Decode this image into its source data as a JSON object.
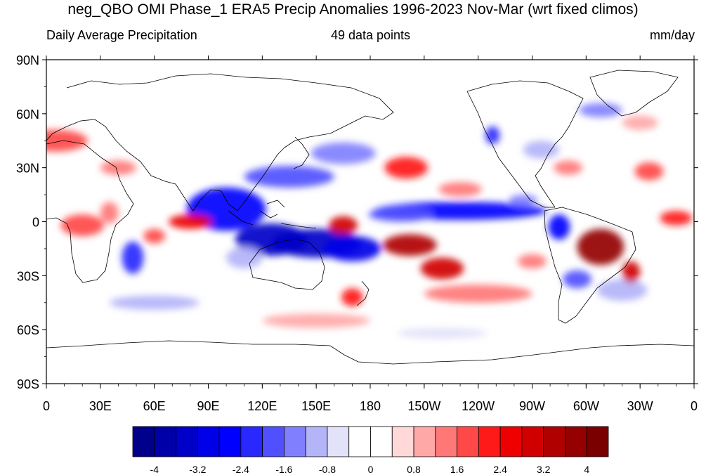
{
  "title": "neg_QBO OMI Phase_1 ERA5 Precip Anomalies 1996-2023 Nov-Mar (wrt fixed climos)",
  "left_subtitle": "Daily Average Precipitation",
  "center_subtitle": "49 data points",
  "right_subtitle": "mm/day",
  "map": {
    "projection": "cylindrical-equidistant",
    "lon_range": [
      0,
      360
    ],
    "lat_range": [
      -90,
      90
    ],
    "lat_ticks": [
      "90N",
      "60N",
      "30N",
      "0",
      "30S",
      "60S",
      "90S"
    ],
    "lon_ticks": [
      "0",
      "30E",
      "60E",
      "90E",
      "120E",
      "150E",
      "180",
      "150W",
      "120W",
      "90W",
      "60W",
      "30W",
      "0"
    ]
  },
  "colorbar": {
    "colors": [
      "#00008b",
      "#0000a8",
      "#0000c8",
      "#0000e8",
      "#0000ff",
      "#2828ff",
      "#5050ff",
      "#8080ff",
      "#b4b4f8",
      "#e2e2f8",
      "#ffffff",
      "#ffffff",
      "#ffd8d8",
      "#ffa8a8",
      "#ff7878",
      "#ff4848",
      "#ff1a1a",
      "#ee0000",
      "#d00000",
      "#b00000",
      "#950000",
      "#7a0000"
    ],
    "labels": [
      "-4",
      "-3.2",
      "-2.4",
      "-1.6",
      "-0.8",
      "0",
      "0.8",
      "1.6",
      "2.4",
      "3.2",
      "4"
    ]
  },
  "anomaly_features": [
    {
      "lon": 100,
      "lat": 7,
      "rx": 22,
      "ry": 12,
      "value": -2.8
    },
    {
      "lon": 125,
      "lat": -10,
      "rx": 20,
      "ry": 9,
      "value": -3.6
    },
    {
      "lon": 150,
      "lat": -12,
      "rx": 25,
      "ry": 8,
      "value": -3.4
    },
    {
      "lon": 170,
      "lat": -15,
      "rx": 16,
      "ry": 7,
      "value": -3.0
    },
    {
      "lon": 230,
      "lat": 6,
      "rx": 48,
      "ry": 5,
      "value": -2.8
    },
    {
      "lon": 197,
      "lat": 4,
      "rx": 18,
      "ry": 4,
      "value": -2.0
    },
    {
      "lon": 135,
      "lat": 25,
      "rx": 25,
      "ry": 6,
      "value": -1.8
    },
    {
      "lon": 165,
      "lat": 38,
      "rx": 18,
      "ry": 6,
      "value": -1.4
    },
    {
      "lon": 48,
      "lat": -20,
      "rx": 6,
      "ry": 9,
      "value": -2.4
    },
    {
      "lon": 285,
      "lat": -3,
      "rx": 6,
      "ry": 7,
      "value": -2.6
    },
    {
      "lon": 295,
      "lat": -32,
      "rx": 8,
      "ry": 5,
      "value": -2.0
    },
    {
      "lon": 320,
      "lat": -38,
      "rx": 14,
      "ry": 6,
      "value": -1.2
    },
    {
      "lon": 308,
      "lat": 62,
      "rx": 12,
      "ry": 4,
      "value": -1.6
    },
    {
      "lon": 248,
      "lat": 48,
      "rx": 4,
      "ry": 5,
      "value": -2.4
    },
    {
      "lon": 275,
      "lat": 40,
      "rx": 10,
      "ry": 5,
      "value": -1.0
    },
    {
      "lon": 80,
      "lat": 0,
      "rx": 12,
      "ry": 4,
      "value": 2.6
    },
    {
      "lon": 165,
      "lat": -2,
      "rx": 8,
      "ry": 5,
      "value": 2.8
    },
    {
      "lon": 202,
      "lat": -13,
      "rx": 15,
      "ry": 6,
      "value": 3.4
    },
    {
      "lon": 220,
      "lat": -26,
      "rx": 12,
      "ry": 6,
      "value": 3.0
    },
    {
      "lon": 240,
      "lat": -40,
      "rx": 30,
      "ry": 5,
      "value": 1.4
    },
    {
      "lon": 308,
      "lat": -14,
      "rx": 13,
      "ry": 10,
      "value": 3.8
    },
    {
      "lon": 325,
      "lat": -28,
      "rx": 5,
      "ry": 6,
      "value": 3.0
    },
    {
      "lon": 350,
      "lat": 2,
      "rx": 9,
      "ry": 4,
      "value": 2.0
    },
    {
      "lon": 20,
      "lat": -2,
      "rx": 12,
      "ry": 6,
      "value": 1.8
    },
    {
      "lon": 5,
      "lat": 45,
      "rx": 18,
      "ry": 6,
      "value": 1.8
    },
    {
      "lon": 200,
      "lat": 30,
      "rx": 12,
      "ry": 6,
      "value": 2.0
    },
    {
      "lon": 230,
      "lat": 18,
      "rx": 12,
      "ry": 4,
      "value": 1.4
    },
    {
      "lon": 290,
      "lat": 30,
      "rx": 8,
      "ry": 4,
      "value": 1.4
    },
    {
      "lon": 335,
      "lat": 28,
      "rx": 8,
      "ry": 5,
      "value": 1.6
    },
    {
      "lon": 110,
      "lat": -20,
      "rx": 10,
      "ry": 6,
      "value": -1.0
    },
    {
      "lon": 60,
      "lat": -8,
      "rx": 6,
      "ry": 4,
      "value": 1.6
    },
    {
      "lon": 170,
      "lat": -42,
      "rx": 6,
      "ry": 5,
      "value": 2.2
    },
    {
      "lon": 265,
      "lat": 12,
      "rx": 8,
      "ry": 3,
      "value": -1.4
    },
    {
      "lon": 270,
      "lat": -22,
      "rx": 8,
      "ry": 4,
      "value": 1.2
    },
    {
      "lon": 40,
      "lat": 30,
      "rx": 10,
      "ry": 4,
      "value": 1.2
    },
    {
      "lon": 35,
      "lat": 5,
      "rx": 5,
      "ry": 6,
      "value": 1.4
    },
    {
      "lon": 330,
      "lat": 55,
      "rx": 10,
      "ry": 4,
      "value": 1.0
    },
    {
      "lon": 60,
      "lat": -45,
      "rx": 25,
      "ry": 4,
      "value": -0.9
    },
    {
      "lon": 150,
      "lat": -55,
      "rx": 30,
      "ry": 4,
      "value": 0.9
    },
    {
      "lon": 220,
      "lat": -62,
      "rx": 25,
      "ry": 3,
      "value": -0.8
    }
  ]
}
